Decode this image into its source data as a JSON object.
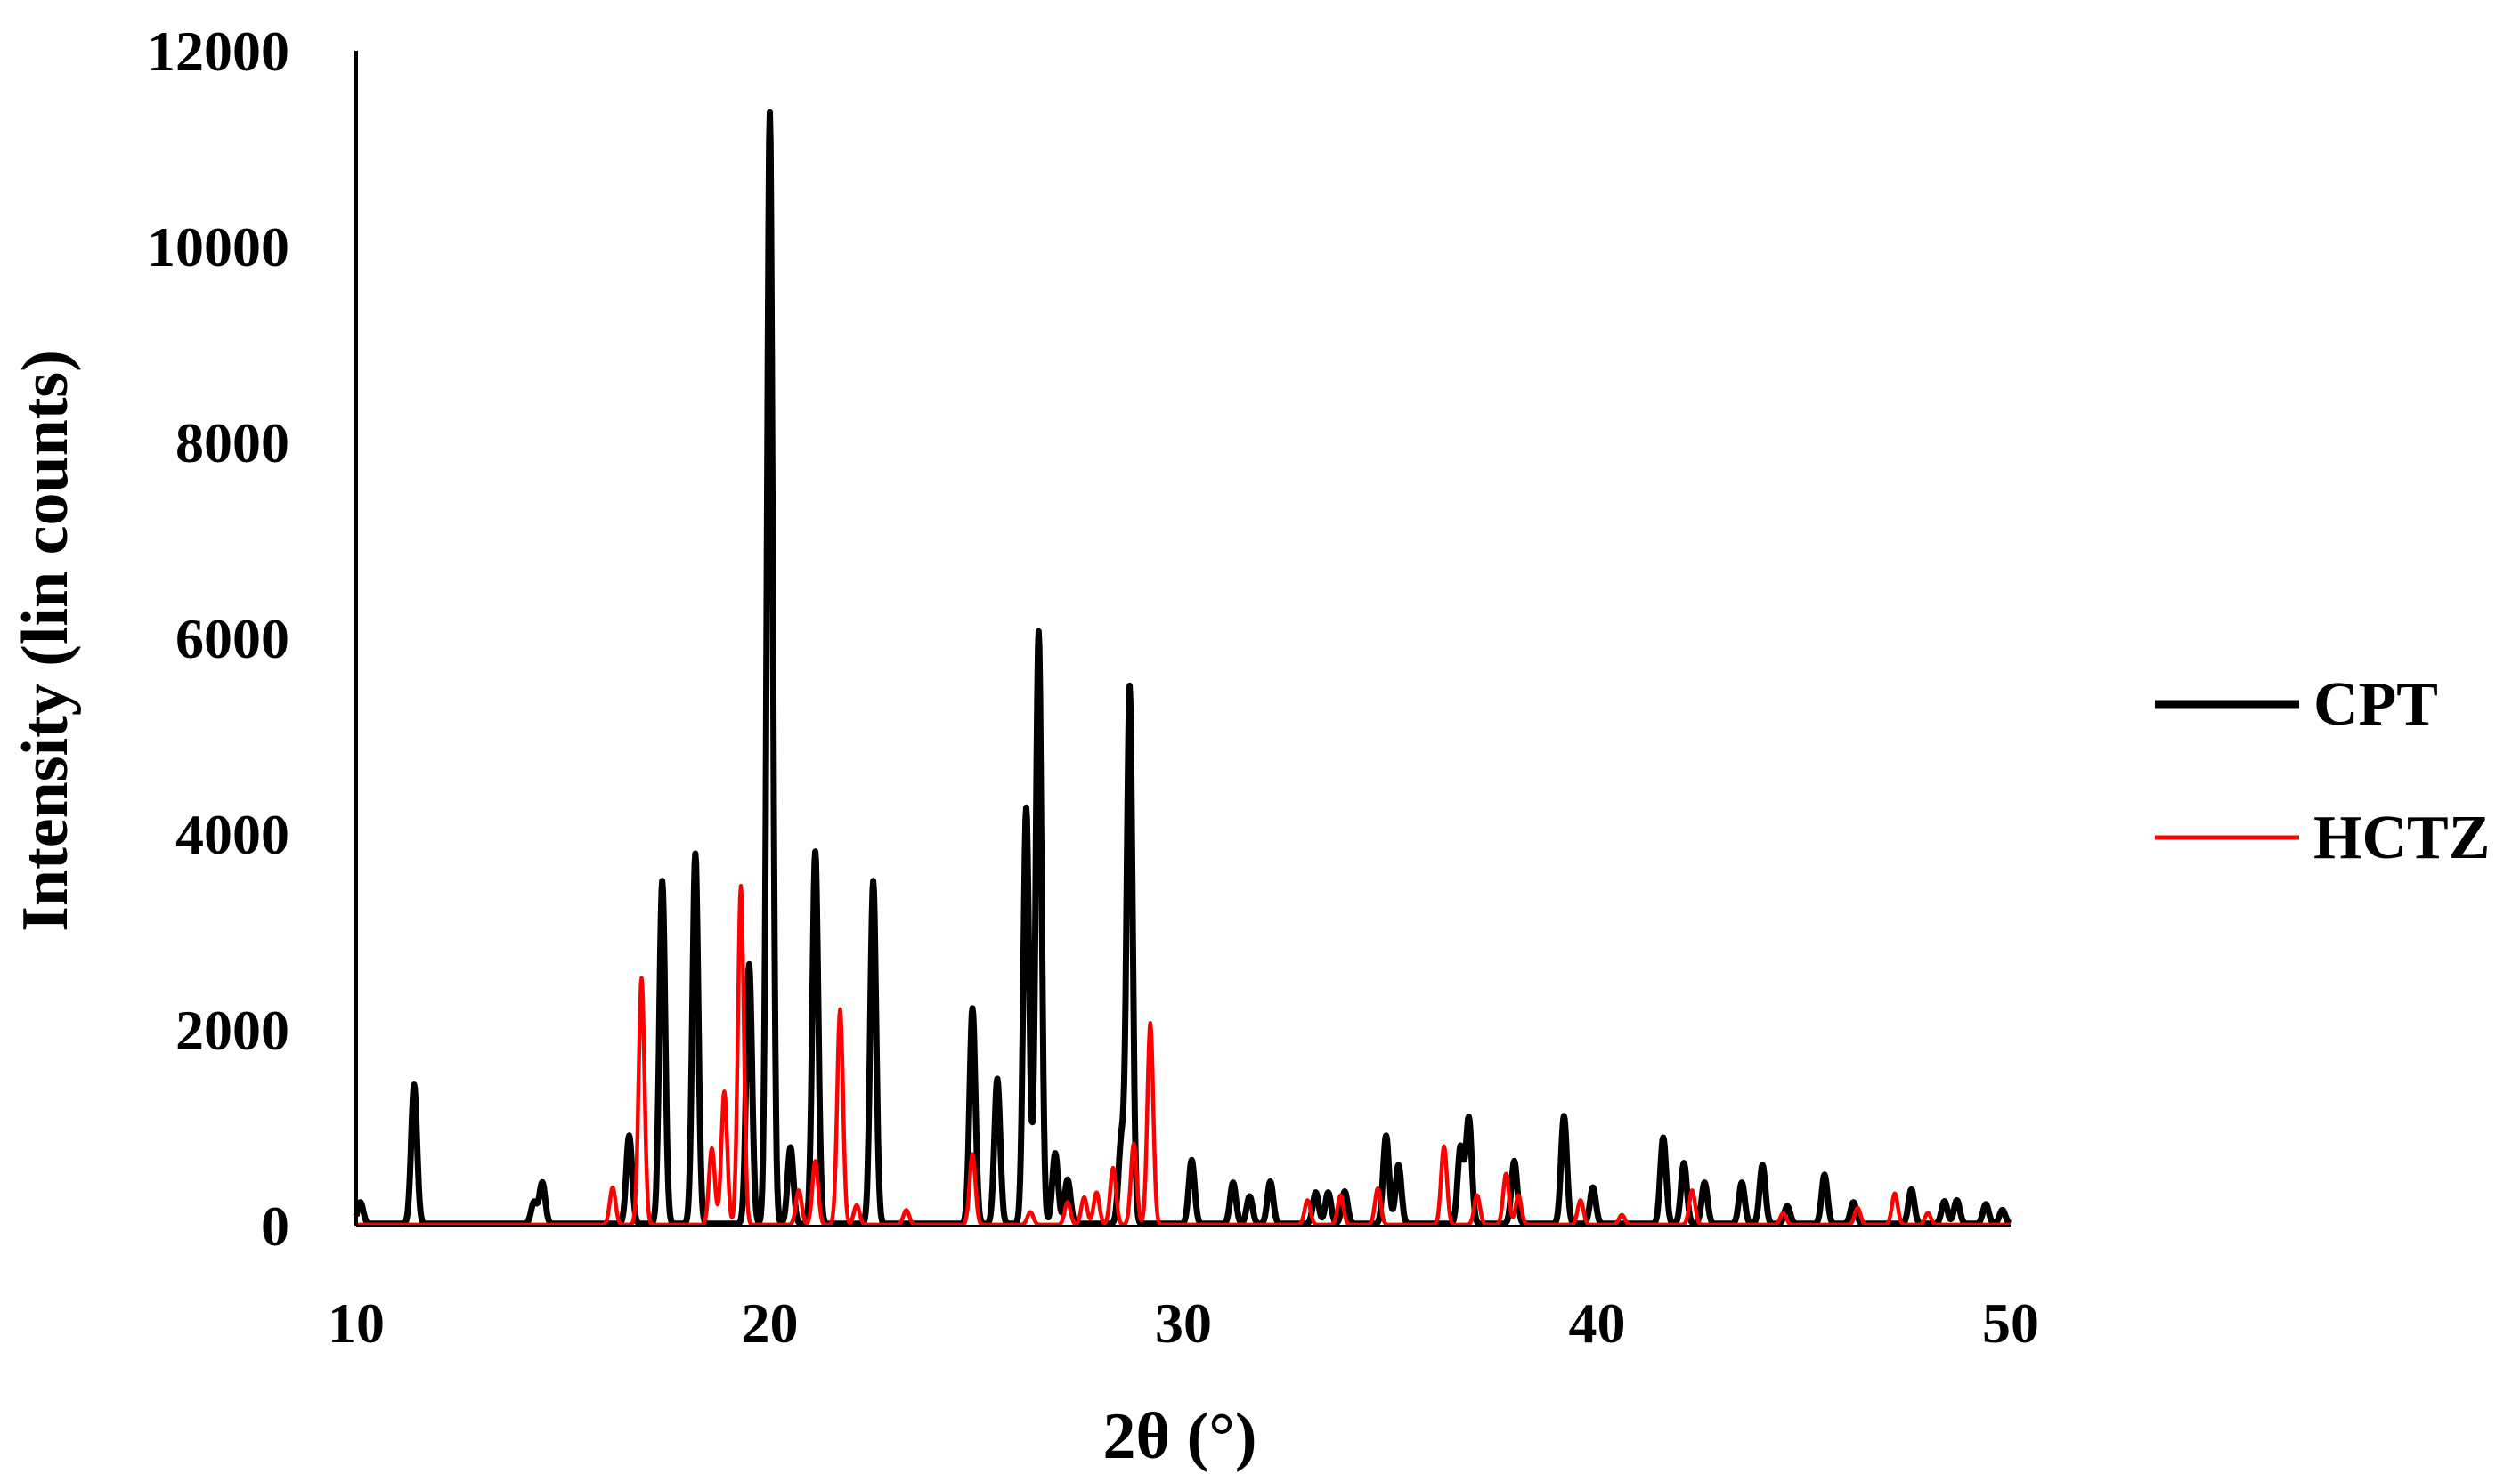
{
  "chart_data": {
    "type": "line",
    "title": "",
    "xlabel": "2θ (°)",
    "ylabel": "Intensity (lin counts)",
    "xlim": [
      10,
      50
    ],
    "ylim": [
      0,
      12000
    ],
    "x_ticks": [
      10,
      20,
      30,
      40,
      50
    ],
    "y_ticks": [
      0,
      2000,
      4000,
      6000,
      8000,
      10000,
      12000
    ],
    "grid": false,
    "legend_position": "right",
    "series": [
      {
        "name": "CPT",
        "color": "#000000",
        "peaks": [
          [
            10.1,
            220
          ],
          [
            11.4,
            1420
          ],
          [
            14.3,
            220
          ],
          [
            14.5,
            420
          ],
          [
            16.6,
            900
          ],
          [
            17.4,
            3500
          ],
          [
            18.2,
            3780
          ],
          [
            19.5,
            2650
          ],
          [
            20.0,
            11350
          ],
          [
            20.5,
            780
          ],
          [
            21.1,
            3800
          ],
          [
            22.5,
            3500
          ],
          [
            24.9,
            2200
          ],
          [
            25.5,
            1480
          ],
          [
            26.2,
            4250
          ],
          [
            26.5,
            6050
          ],
          [
            26.9,
            720
          ],
          [
            27.2,
            450
          ],
          [
            28.5,
            850
          ],
          [
            28.7,
            5480
          ],
          [
            30.2,
            650
          ],
          [
            31.2,
            420
          ],
          [
            31.6,
            280
          ],
          [
            32.1,
            430
          ],
          [
            33.2,
            320
          ],
          [
            33.5,
            320
          ],
          [
            33.9,
            330
          ],
          [
            34.9,
            900
          ],
          [
            35.2,
            600
          ],
          [
            36.7,
            780
          ],
          [
            36.9,
            1080
          ],
          [
            38.0,
            640
          ],
          [
            39.2,
            1100
          ],
          [
            39.9,
            370
          ],
          [
            41.6,
            880
          ],
          [
            42.1,
            620
          ],
          [
            42.6,
            420
          ],
          [
            43.5,
            420
          ],
          [
            44.0,
            600
          ],
          [
            44.6,
            180
          ],
          [
            45.5,
            500
          ],
          [
            46.2,
            220
          ],
          [
            47.6,
            350
          ],
          [
            48.4,
            230
          ],
          [
            48.7,
            240
          ],
          [
            49.4,
            200
          ],
          [
            49.8,
            140
          ]
        ],
        "baseline": 20
      },
      {
        "name": "HCTZ",
        "color": "#ff0000",
        "peaks": [
          [
            16.2,
            380
          ],
          [
            16.9,
            2520
          ],
          [
            18.6,
            780
          ],
          [
            18.9,
            1360
          ],
          [
            19.3,
            3460
          ],
          [
            20.7,
            350
          ],
          [
            21.1,
            650
          ],
          [
            21.7,
            2200
          ],
          [
            22.1,
            200
          ],
          [
            23.3,
            150
          ],
          [
            24.9,
            720
          ],
          [
            26.3,
            130
          ],
          [
            27.2,
            230
          ],
          [
            27.6,
            280
          ],
          [
            27.9,
            330
          ],
          [
            28.3,
            580
          ],
          [
            28.8,
            830
          ],
          [
            29.2,
            2060
          ],
          [
            33.0,
            250
          ],
          [
            33.8,
            300
          ],
          [
            34.7,
            370
          ],
          [
            36.3,
            800
          ],
          [
            37.1,
            300
          ],
          [
            37.8,
            520
          ],
          [
            38.1,
            300
          ],
          [
            39.6,
            250
          ],
          [
            40.6,
            100
          ],
          [
            42.3,
            350
          ],
          [
            44.5,
            120
          ],
          [
            46.3,
            170
          ],
          [
            47.2,
            320
          ],
          [
            48.0,
            120
          ]
        ],
        "baseline": 10
      }
    ]
  }
}
